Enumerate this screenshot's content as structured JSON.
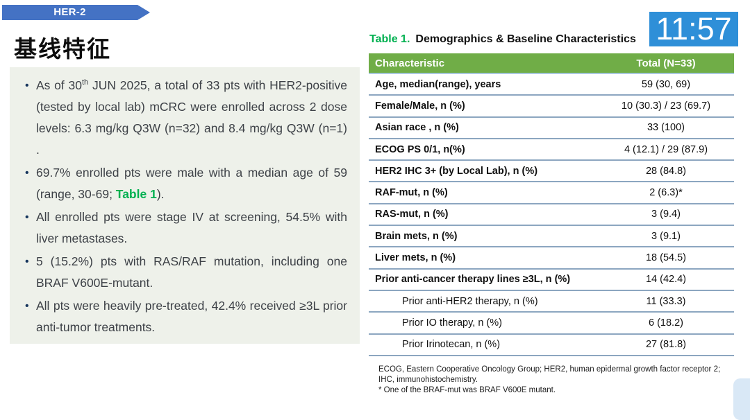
{
  "banner": {
    "label": "HER-2"
  },
  "page_title": "基线特征",
  "clock": {
    "time": "11:57"
  },
  "colors": {
    "banner_blue": "#4472c4",
    "clock_blue": "#2e8fd8",
    "table_header_green": "#70ad47",
    "table_ref_green": "#00b050",
    "row_divider": "#8ca6c0",
    "panel_bg": "#eef1ea"
  },
  "bullets": {
    "b1_pre": "As of 30",
    "b1_sup": "th",
    "b1_post": " JUN 2025, a total of 33 pts with HER2-positive (tested by local lab) mCRC were enrolled across 2 dose levels: 6.3 mg/kg Q3W (n=32) and 8.4 mg/kg Q3W (n=1) .",
    "b2_pre": "69.7% enrolled pts were male with a median age of 59 (range, 30-69; ",
    "b2_ref": "Table 1",
    "b2_post": ").",
    "b3": "All enrolled pts were stage IV at screening, 54.5% with liver metastases.",
    "b4": "5 (15.2%) pts with RAS/RAF mutation, including one BRAF V600E-mutant.",
    "b5": "All pts were heavily pre-treated, 42.4% received ≥3L prior anti-tumor treatments."
  },
  "table": {
    "title_prefix": "Table 1.",
    "title": "Demographics & Baseline Characteristics",
    "header": {
      "characteristic": "Characteristic",
      "total": "Total (N=33)"
    },
    "rows": [
      {
        "label": "Age, median(range), years",
        "value": "59 (30, 69)"
      },
      {
        "label": "Female/Male, n (%)",
        "value": "10 (30.3) / 23 (69.7)"
      },
      {
        "label": "Asian race , n (%)",
        "value": "33 (100)"
      },
      {
        "label": "ECOG PS 0/1, n(%)",
        "value": "4 (12.1) / 29 (87.9)"
      },
      {
        "label": "HER2 IHC 3+ (by Local Lab), n (%)",
        "value": "28 (84.8)"
      },
      {
        "label": "RAF-mut, n (%)",
        "value": "2 (6.3)*"
      },
      {
        "label": "RAS-mut, n (%)",
        "value": "3 (9.4)"
      },
      {
        "label": "Brain mets, n (%)",
        "value": "3 (9.1)"
      },
      {
        "label": "Liver mets, n (%)",
        "value": "18 (54.5)"
      },
      {
        "label": "Prior anti-cancer therapy lines ≥3L, n (%)",
        "value": "14 (42.4)"
      },
      {
        "label": "Prior anti-HER2 therapy, n (%)",
        "value": "11 (33.3)"
      },
      {
        "label": "Prior IO therapy, n (%)",
        "value": "6 (18.2)"
      },
      {
        "label": "Prior Irinotecan, n (%)",
        "value": "27 (81.8)"
      }
    ],
    "footnotes": [
      "ECOG, Eastern Cooperative Oncology Group; HER2, human epidermal growth factor receptor 2; IHC, immunohistochemistry.",
      "* One of the BRAF-mut was BRAF V600E mutant."
    ]
  }
}
